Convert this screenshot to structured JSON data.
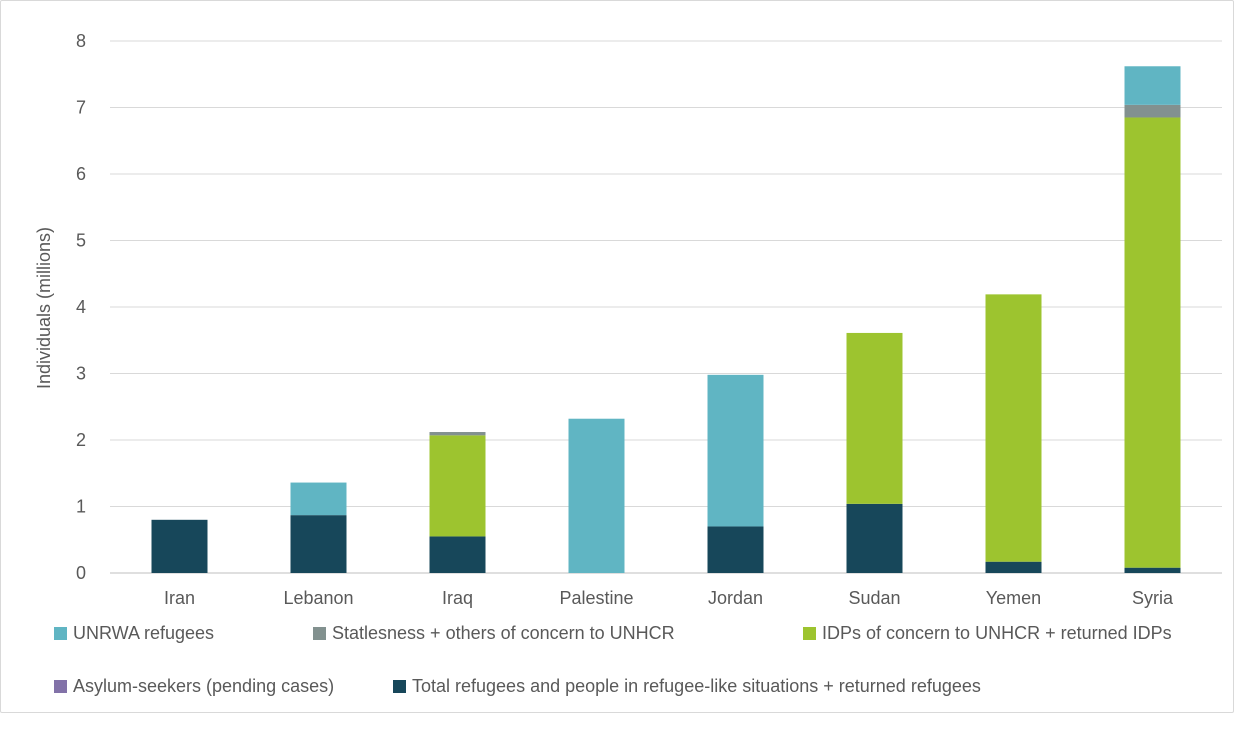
{
  "chart_data": {
    "type": "bar",
    "stacked": true,
    "categories": [
      "Iran",
      "Lebanon",
      "Iraq",
      "Palestine",
      "Jordan",
      "Sudan",
      "Yemen",
      "Syria"
    ],
    "series": [
      {
        "name": "Total refugees and people in refugee-like situations + returned refugees",
        "color": "#17475a",
        "values": [
          0.8,
          0.87,
          0.55,
          0.0,
          0.7,
          1.04,
          0.17,
          0.08
        ]
      },
      {
        "name": "Asylum-seekers (pending cases)",
        "color": "#8272a8",
        "values": [
          0,
          0,
          0,
          0,
          0,
          0,
          0,
          0
        ]
      },
      {
        "name": "IDPs of concern to UNHCR + returned IDPs",
        "color": "#9dc42f",
        "values": [
          0.0,
          0.0,
          1.52,
          0.0,
          0.0,
          2.57,
          4.02,
          6.77
        ]
      },
      {
        "name": "Statlesness + others of concern to UNHCR",
        "color": "#82918f",
        "values": [
          0.0,
          0.0,
          0.05,
          0.0,
          0.0,
          0.0,
          0.0,
          0.19
        ]
      },
      {
        "name": "UNRWA refugees",
        "color": "#60b5c3",
        "values": [
          0.0,
          0.49,
          0.0,
          2.32,
          2.28,
          0.0,
          0.0,
          0.58
        ]
      }
    ],
    "ylabel": "Individuals (millions)",
    "xlabel": "",
    "title": "",
    "ylim": [
      0,
      8
    ],
    "yticks": [
      "0",
      "1",
      "2",
      "3",
      "4",
      "5",
      "6",
      "7",
      "8"
    ],
    "grid": true,
    "legend": {
      "placement": "bottom",
      "order": [
        "UNRWA refugees",
        "Statlesness + others of concern to UNHCR",
        "IDPs of concern to UNHCR + returned IDPs",
        "Asylum-seekers (pending cases)",
        "Total refugees and people in refugee-like situations + returned refugees"
      ]
    }
  }
}
